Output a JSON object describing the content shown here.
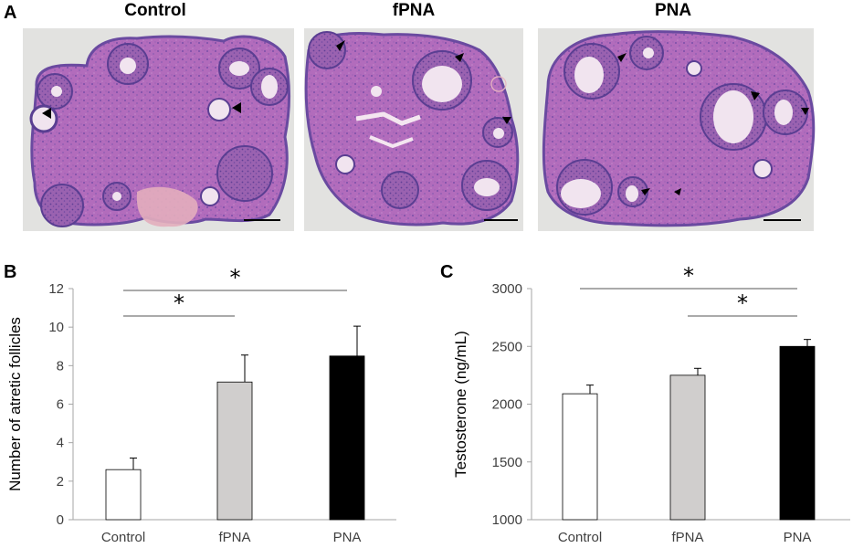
{
  "figure": {
    "panel_letters": {
      "a": "A",
      "b": "B",
      "c": "C"
    },
    "micrographs": [
      {
        "title": "Control",
        "arrowheads": 2
      },
      {
        "title": "fPNA",
        "arrowheads": 3
      },
      {
        "title": "PNA",
        "arrowheads": 5
      }
    ],
    "colors": {
      "slide_background": "#e2e2e0",
      "tissue_stroma": "#b06aba",
      "tissue_dark": "#6a4aa0",
      "follicle_fluid": "#f1e4ef",
      "scale_bar": "#000000"
    }
  },
  "chart_data": [
    {
      "panel": "B",
      "type": "bar",
      "categories": [
        "Control",
        "fPNA",
        "PNA"
      ],
      "values": [
        2.6,
        7.15,
        8.5
      ],
      "error": [
        0.6,
        1.4,
        1.55
      ],
      "colors": [
        "#ffffff",
        "#d0cecd",
        "#000000"
      ],
      "ylabel": "Number of atretic follicles",
      "ylim": [
        0,
        12
      ],
      "yticks": [
        0,
        2,
        4,
        6,
        8,
        10,
        12
      ],
      "grid": false,
      "significance": [
        {
          "from": 0,
          "to": 1,
          "label": "*"
        },
        {
          "from": 0,
          "to": 2,
          "label": "*"
        }
      ]
    },
    {
      "panel": "C",
      "type": "bar",
      "categories": [
        "Control",
        "fPNA",
        "PNA"
      ],
      "values": [
        2090,
        2250,
        2500
      ],
      "error": [
        75,
        60,
        60
      ],
      "colors": [
        "#ffffff",
        "#d0cecd",
        "#000000"
      ],
      "ylabel": "Testosterone (ng/mL)",
      "ylim": [
        1000,
        3000
      ],
      "yticks": [
        1000,
        1500,
        2000,
        2500,
        3000
      ],
      "grid": false,
      "significance": [
        {
          "from": 1,
          "to": 2,
          "label": "*"
        },
        {
          "from": 0,
          "to": 2,
          "label": "*"
        }
      ]
    }
  ]
}
